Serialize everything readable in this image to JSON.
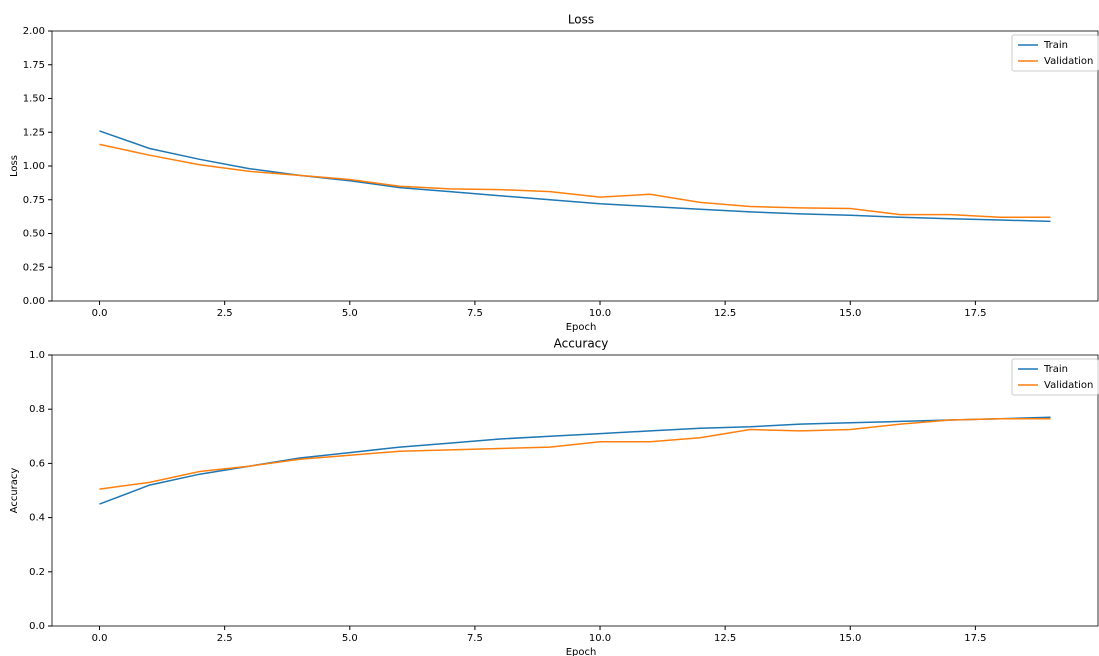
{
  "chart_data": [
    {
      "type": "line",
      "title": "Loss",
      "xlabel": "Epoch",
      "ylabel": "Loss",
      "x": [
        0,
        1,
        2,
        3,
        4,
        5,
        6,
        7,
        8,
        9,
        10,
        11,
        12,
        13,
        14,
        15,
        16,
        17,
        18,
        19
      ],
      "series": [
        {
          "name": "Train",
          "color": "#1f77b4",
          "values": [
            1.26,
            1.13,
            1.05,
            0.98,
            0.93,
            0.89,
            0.84,
            0.81,
            0.78,
            0.75,
            0.72,
            0.7,
            0.68,
            0.66,
            0.645,
            0.635,
            0.62,
            0.61,
            0.6,
            0.59
          ]
        },
        {
          "name": "Validation",
          "color": "#ff7f0e",
          "values": [
            1.16,
            1.08,
            1.01,
            0.96,
            0.93,
            0.9,
            0.85,
            0.83,
            0.825,
            0.81,
            0.77,
            0.79,
            0.73,
            0.7,
            0.69,
            0.685,
            0.64,
            0.64,
            0.62,
            0.62
          ]
        }
      ],
      "xlim": [
        -0.95,
        19.95
      ],
      "xticks": [
        {
          "value": 0,
          "label": "0.0"
        },
        {
          "value": 2.5,
          "label": "2.5"
        },
        {
          "value": 5,
          "label": "5.0"
        },
        {
          "value": 7.5,
          "label": "7.5"
        },
        {
          "value": 10,
          "label": "10.0"
        },
        {
          "value": 12.5,
          "label": "12.5"
        },
        {
          "value": 15,
          "label": "15.0"
        },
        {
          "value": 17.5,
          "label": "17.5"
        }
      ],
      "ylim": [
        0,
        2
      ],
      "yticks": [
        {
          "value": 0,
          "label": "0.00"
        },
        {
          "value": 0.25,
          "label": "0.25"
        },
        {
          "value": 0.5,
          "label": "0.50"
        },
        {
          "value": 0.75,
          "label": "0.75"
        },
        {
          "value": 1,
          "label": "1.00"
        },
        {
          "value": 1.25,
          "label": "1.25"
        },
        {
          "value": 1.5,
          "label": "1.50"
        },
        {
          "value": 1.75,
          "label": "1.75"
        },
        {
          "value": 2,
          "label": "2.00"
        }
      ],
      "legend": "upper right"
    },
    {
      "type": "line",
      "title": "Accuracy",
      "xlabel": "Epoch",
      "ylabel": "Accuracy",
      "x": [
        0,
        1,
        2,
        3,
        4,
        5,
        6,
        7,
        8,
        9,
        10,
        11,
        12,
        13,
        14,
        15,
        16,
        17,
        18,
        19
      ],
      "series": [
        {
          "name": "Train",
          "color": "#1f77b4",
          "values": [
            0.45,
            0.52,
            0.56,
            0.59,
            0.62,
            0.64,
            0.66,
            0.675,
            0.69,
            0.7,
            0.71,
            0.72,
            0.73,
            0.735,
            0.745,
            0.75,
            0.755,
            0.76,
            0.765,
            0.77
          ]
        },
        {
          "name": "Validation",
          "color": "#ff7f0e",
          "values": [
            0.505,
            0.53,
            0.57,
            0.59,
            0.615,
            0.63,
            0.645,
            0.65,
            0.655,
            0.66,
            0.68,
            0.68,
            0.695,
            0.725,
            0.72,
            0.725,
            0.745,
            0.76,
            0.765,
            0.765
          ]
        }
      ],
      "xlim": [
        -0.95,
        19.95
      ],
      "xticks": [
        {
          "value": 0,
          "label": "0.0"
        },
        {
          "value": 2.5,
          "label": "2.5"
        },
        {
          "value": 5,
          "label": "5.0"
        },
        {
          "value": 7.5,
          "label": "7.5"
        },
        {
          "value": 10,
          "label": "10.0"
        },
        {
          "value": 12.5,
          "label": "12.5"
        },
        {
          "value": 15,
          "label": "15.0"
        },
        {
          "value": 17.5,
          "label": "17.5"
        }
      ],
      "ylim": [
        0,
        1
      ],
      "yticks": [
        {
          "value": 0,
          "label": "0.0"
        },
        {
          "value": 0.2,
          "label": "0.2"
        },
        {
          "value": 0.4,
          "label": "0.4"
        },
        {
          "value": 0.6,
          "label": "0.6"
        },
        {
          "value": 0.8,
          "label": "0.8"
        },
        {
          "value": 1,
          "label": "1.0"
        }
      ],
      "legend": "upper right"
    }
  ]
}
